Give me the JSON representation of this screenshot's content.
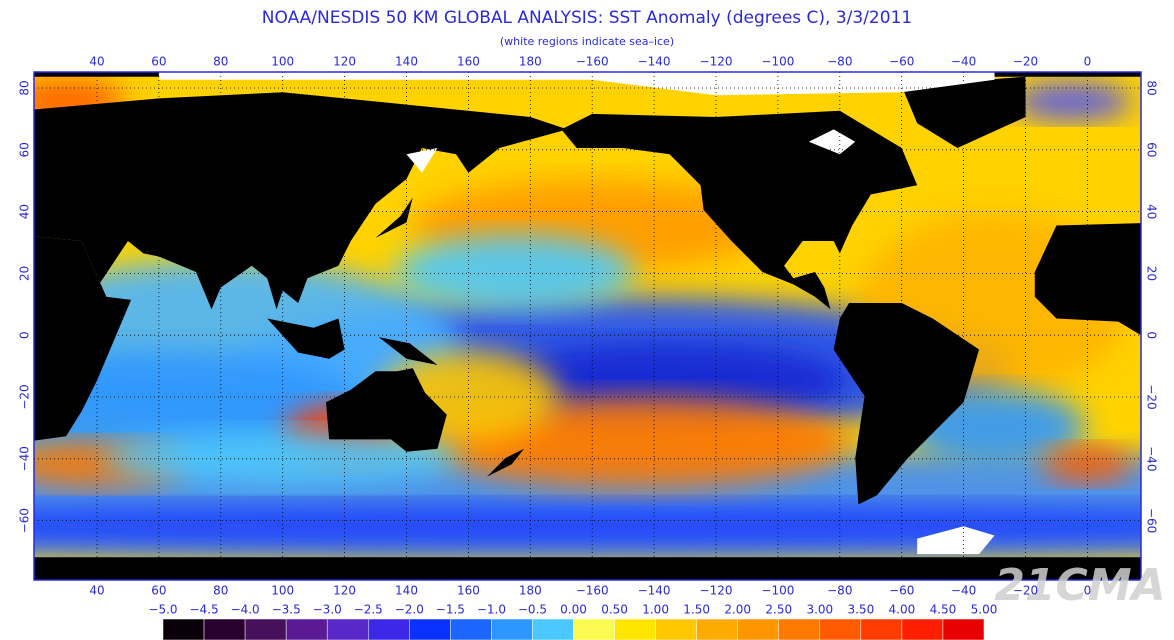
{
  "header": {
    "title": "NOAA/NESDIS 50 KM GLOBAL ANALYSIS: SST Anomaly (degrees C), 3/3/2011",
    "subtitle": "(white regions indicate sea–ice)"
  },
  "map": {
    "longitude_labels": [
      "40",
      "60",
      "80",
      "100",
      "120",
      "140",
      "160",
      "180",
      "−160",
      "−140",
      "−120",
      "−100",
      "−80",
      "−60",
      "−40",
      "−20",
      "0"
    ],
    "latitude_labels": [
      "80",
      "60",
      "40",
      "20",
      "0",
      "−20",
      "−40",
      "−60"
    ]
  },
  "colorbar": {
    "labels": [
      "−5.0",
      "−4.5",
      "−4.0",
      "−3.5",
      "−3.0",
      "−2.5",
      "−2.0",
      "−1.5",
      "−1.0",
      "−0.5",
      "0.00",
      "0.50",
      "1.00",
      "1.50",
      "2.00",
      "2.50",
      "3.00",
      "3.50",
      "4.00",
      "4.50",
      "5.00"
    ],
    "colors": [
      "#0a000a",
      "#2a0030",
      "#46105a",
      "#5a1a96",
      "#5a28c8",
      "#3c28e6",
      "#0a32ff",
      "#1e64ff",
      "#2d96ff",
      "#4bc8ff",
      "#fafa50",
      "#ffe600",
      "#ffc800",
      "#ffaa00",
      "#ff9600",
      "#ff7800",
      "#ff5a00",
      "#ff3c00",
      "#ff1e00",
      "#e60000"
    ]
  },
  "watermark": "21CMA"
}
